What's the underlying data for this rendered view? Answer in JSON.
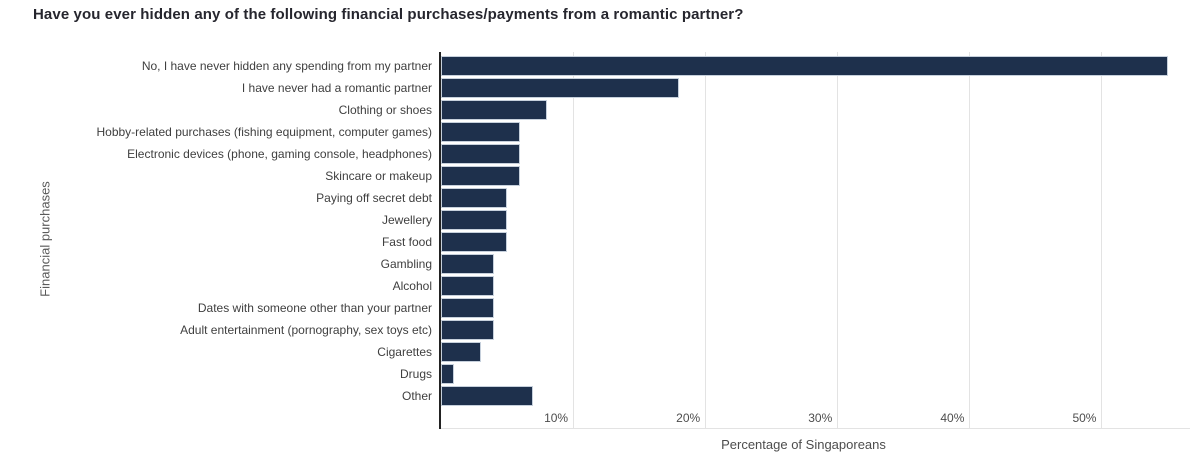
{
  "title": "Have you ever hidden any of the following financial purchases/payments from a romantic partner?",
  "chart_data": {
    "type": "bar",
    "orientation": "horizontal",
    "title": "Have you ever hidden any of the following financial purchases/payments from a romantic partner?",
    "xlabel": "Percentage of Singaporeans",
    "ylabel": "Financial purchases",
    "unit": "%",
    "xlim": [
      0,
      56.7
    ],
    "grid": "vertical",
    "legend": "none",
    "categories": [
      "No, I have never hidden any spending from my partner",
      "I have never had a romantic partner",
      "Clothing or shoes",
      "Hobby-related purchases (fishing equipment, computer games)",
      "Electronic devices (phone, gaming console, headphones)",
      "Skincare or makeup",
      "Paying off secret debt",
      "Jewellery",
      "Fast food",
      "Gambling",
      "Alcohol",
      "Dates with someone other than your partner",
      "Adult entertainment (pornography, sex toys etc)",
      "Cigarettes",
      "Drugs",
      "Other"
    ],
    "values": [
      55,
      18,
      8,
      6,
      6,
      6,
      5,
      5,
      5,
      4,
      4,
      4,
      4,
      3,
      1,
      7
    ],
    "xticks": [
      {
        "value": 10,
        "label": "10%"
      },
      {
        "value": 20,
        "label": "20%"
      },
      {
        "value": 30,
        "label": "30%"
      },
      {
        "value": 40,
        "label": "40%"
      },
      {
        "value": 50,
        "label": "50%"
      }
    ]
  },
  "colors": {
    "bar": "#1e304c",
    "axis": "#222222",
    "grid": "#e3e3e3",
    "title": "#26262e",
    "label": "#3f3f3f",
    "tick": "#4d4d4d",
    "muted": "#5a5a5a"
  }
}
